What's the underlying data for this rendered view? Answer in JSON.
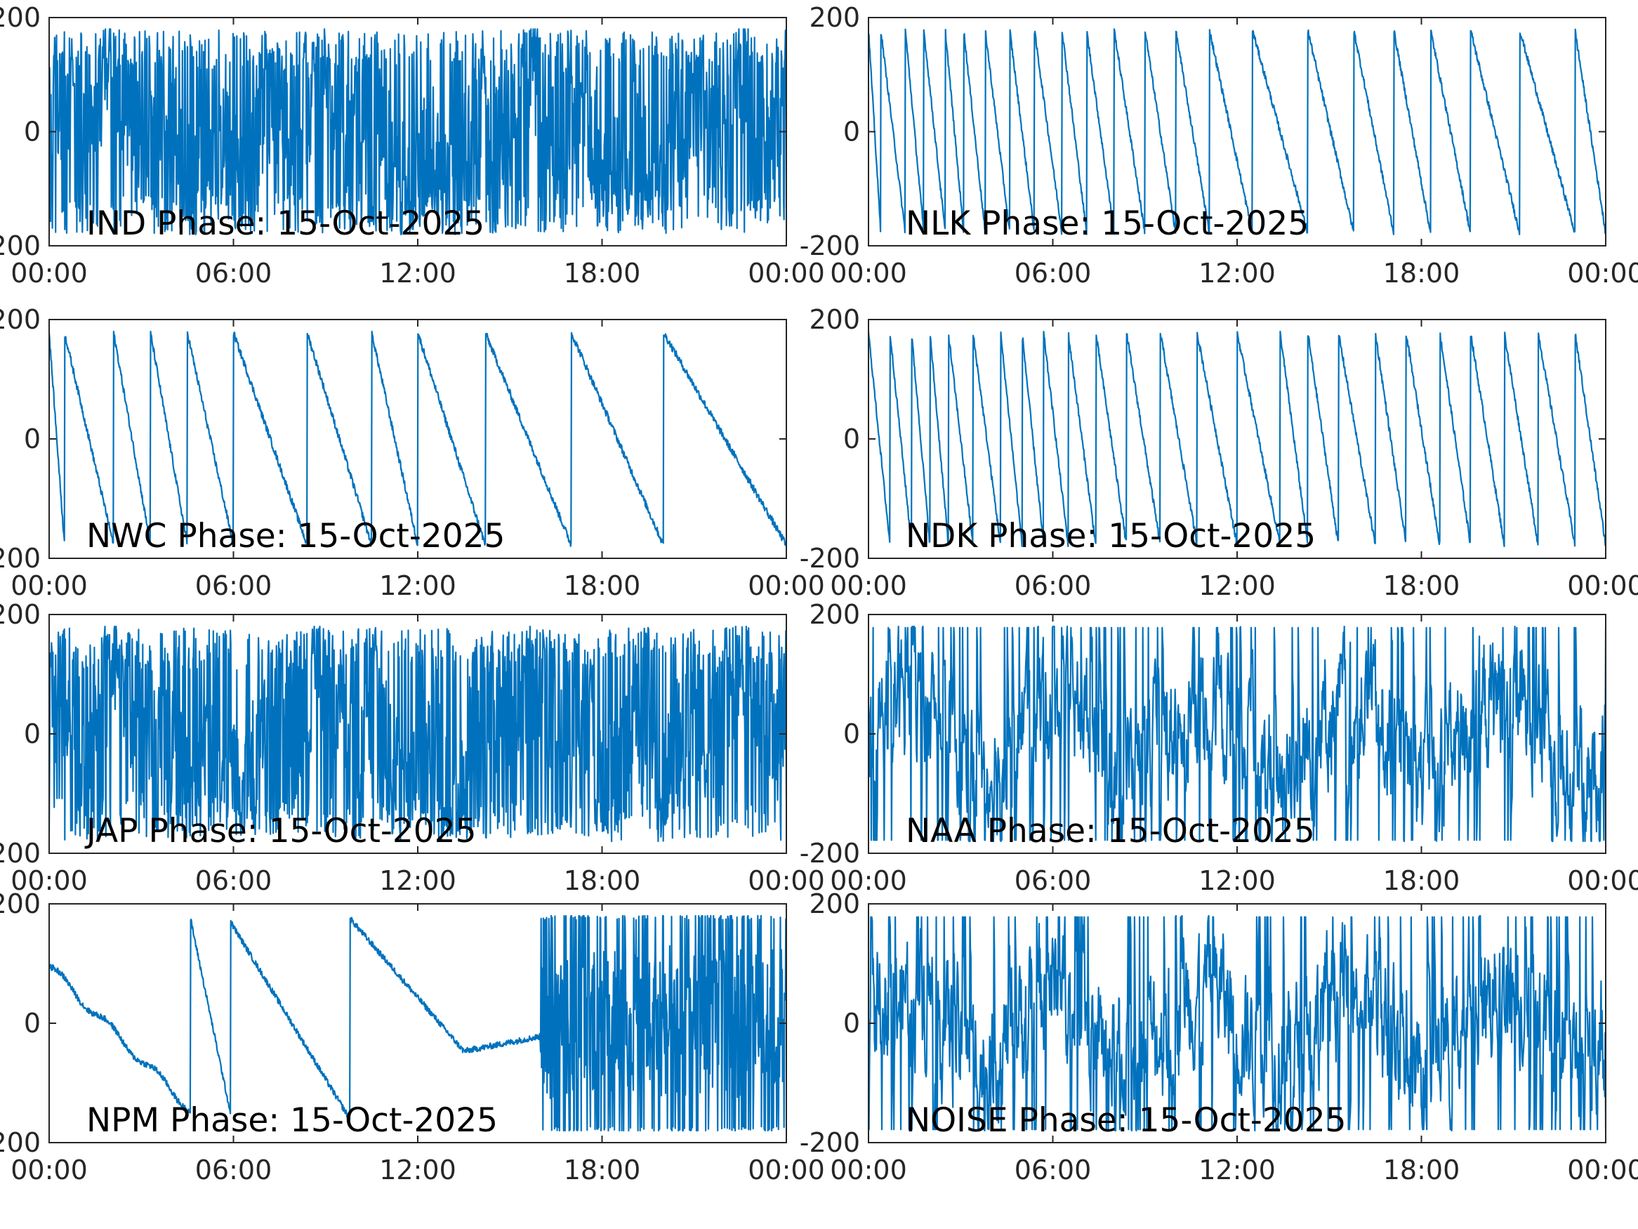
{
  "chart_data": [
    {
      "type": "line",
      "title": "IND Phase: 15-Oct-2025",
      "ylim": [
        -200,
        200
      ],
      "yticks": [
        "-200",
        "0",
        "200"
      ],
      "xticks": [
        "00:00",
        "06:00",
        "12:00",
        "18:00",
        "00:00"
      ],
      "xlim_hours": [
        0,
        24
      ],
      "color": "#0072BD",
      "style": "dense"
    },
    {
      "type": "line",
      "title": "NLK Phase: 15-Oct-2025",
      "ylim": [
        -200,
        200
      ],
      "yticks": [
        "-200",
        "0",
        "200"
      ],
      "xticks": [
        "00:00",
        "06:00",
        "12:00",
        "18:00",
        "00:00"
      ],
      "xlim_hours": [
        0,
        24
      ],
      "color": "#0072BD",
      "style": "sawtooth",
      "wraps": [
        0.4,
        1.2,
        1.8,
        2.5,
        3.1,
        3.8,
        4.6,
        5.4,
        6.3,
        7.1,
        8.0,
        9.0,
        10.0,
        11.1,
        12.5,
        14.3,
        15.8,
        17.1,
        18.3,
        19.6,
        21.2,
        23.0
      ]
    },
    {
      "type": "line",
      "title": "NWC Phase: 15-Oct-2025",
      "ylim": [
        -200,
        200
      ],
      "yticks": [
        "-200",
        "0",
        "200"
      ],
      "xticks": [
        "00:00",
        "06:00",
        "12:00",
        "18:00",
        "00:00"
      ],
      "xlim_hours": [
        0,
        24
      ],
      "color": "#0072BD",
      "style": "sawtooth",
      "wraps": [
        0.5,
        2.1,
        3.3,
        4.5,
        6.0,
        8.4,
        10.5,
        12.0,
        14.2,
        17.0,
        20.0
      ]
    },
    {
      "type": "line",
      "title": "NDK Phase: 15-Oct-2025",
      "ylim": [
        -200,
        200
      ],
      "yticks": [
        "-200",
        "0",
        "200"
      ],
      "xticks": [
        "00:00",
        "06:00",
        "12:00",
        "18:00",
        "00:00"
      ],
      "xlim_hours": [
        0,
        24
      ],
      "color": "#0072BD",
      "style": "sawtooth",
      "wraps": [
        0.7,
        1.4,
        2.0,
        2.6,
        3.4,
        4.3,
        5.0,
        5.7,
        6.5,
        7.4,
        8.4,
        9.5,
        10.7,
        12.0,
        13.4,
        14.3,
        15.3,
        16.5,
        17.5,
        18.6,
        19.6,
        20.7,
        21.8,
        23.0
      ]
    },
    {
      "type": "line",
      "title": "JAP Phase: 15-Oct-2025",
      "ylim": [
        -200,
        200
      ],
      "yticks": [
        "-200",
        "0",
        "200"
      ],
      "xticks": [
        "00:00",
        "06:00",
        "12:00",
        "18:00",
        "00:00"
      ],
      "xlim_hours": [
        0,
        24
      ],
      "color": "#0072BD",
      "style": "dense"
    },
    {
      "type": "line",
      "title": "NAA Phase: 15-Oct-2025",
      "ylim": [
        -200,
        200
      ],
      "yticks": [
        "-200",
        "0",
        "200"
      ],
      "xticks": [
        "00:00",
        "06:00",
        "12:00",
        "18:00",
        "00:00"
      ],
      "xlim_hours": [
        0,
        24
      ],
      "color": "#0072BD",
      "style": "noisy"
    },
    {
      "type": "line",
      "title": "NPM Phase: 15-Oct-2025",
      "ylim": [
        -200,
        200
      ],
      "yticks": [
        "-200",
        "0",
        "200"
      ],
      "xticks": [
        "00:00",
        "06:00",
        "12:00",
        "18:00",
        "00:00"
      ],
      "xlim_hours": [
        0,
        24
      ],
      "color": "#0072BD",
      "style": "npm"
    },
    {
      "type": "line",
      "title": "NOISE Phase: 15-Oct-2025",
      "ylim": [
        -200,
        200
      ],
      "yticks": [
        "-200",
        "0",
        "200"
      ],
      "xticks": [
        "00:00",
        "06:00",
        "12:00",
        "18:00",
        "00:00"
      ],
      "xlim_hours": [
        0,
        24
      ],
      "color": "#0072BD",
      "style": "noisy"
    }
  ]
}
